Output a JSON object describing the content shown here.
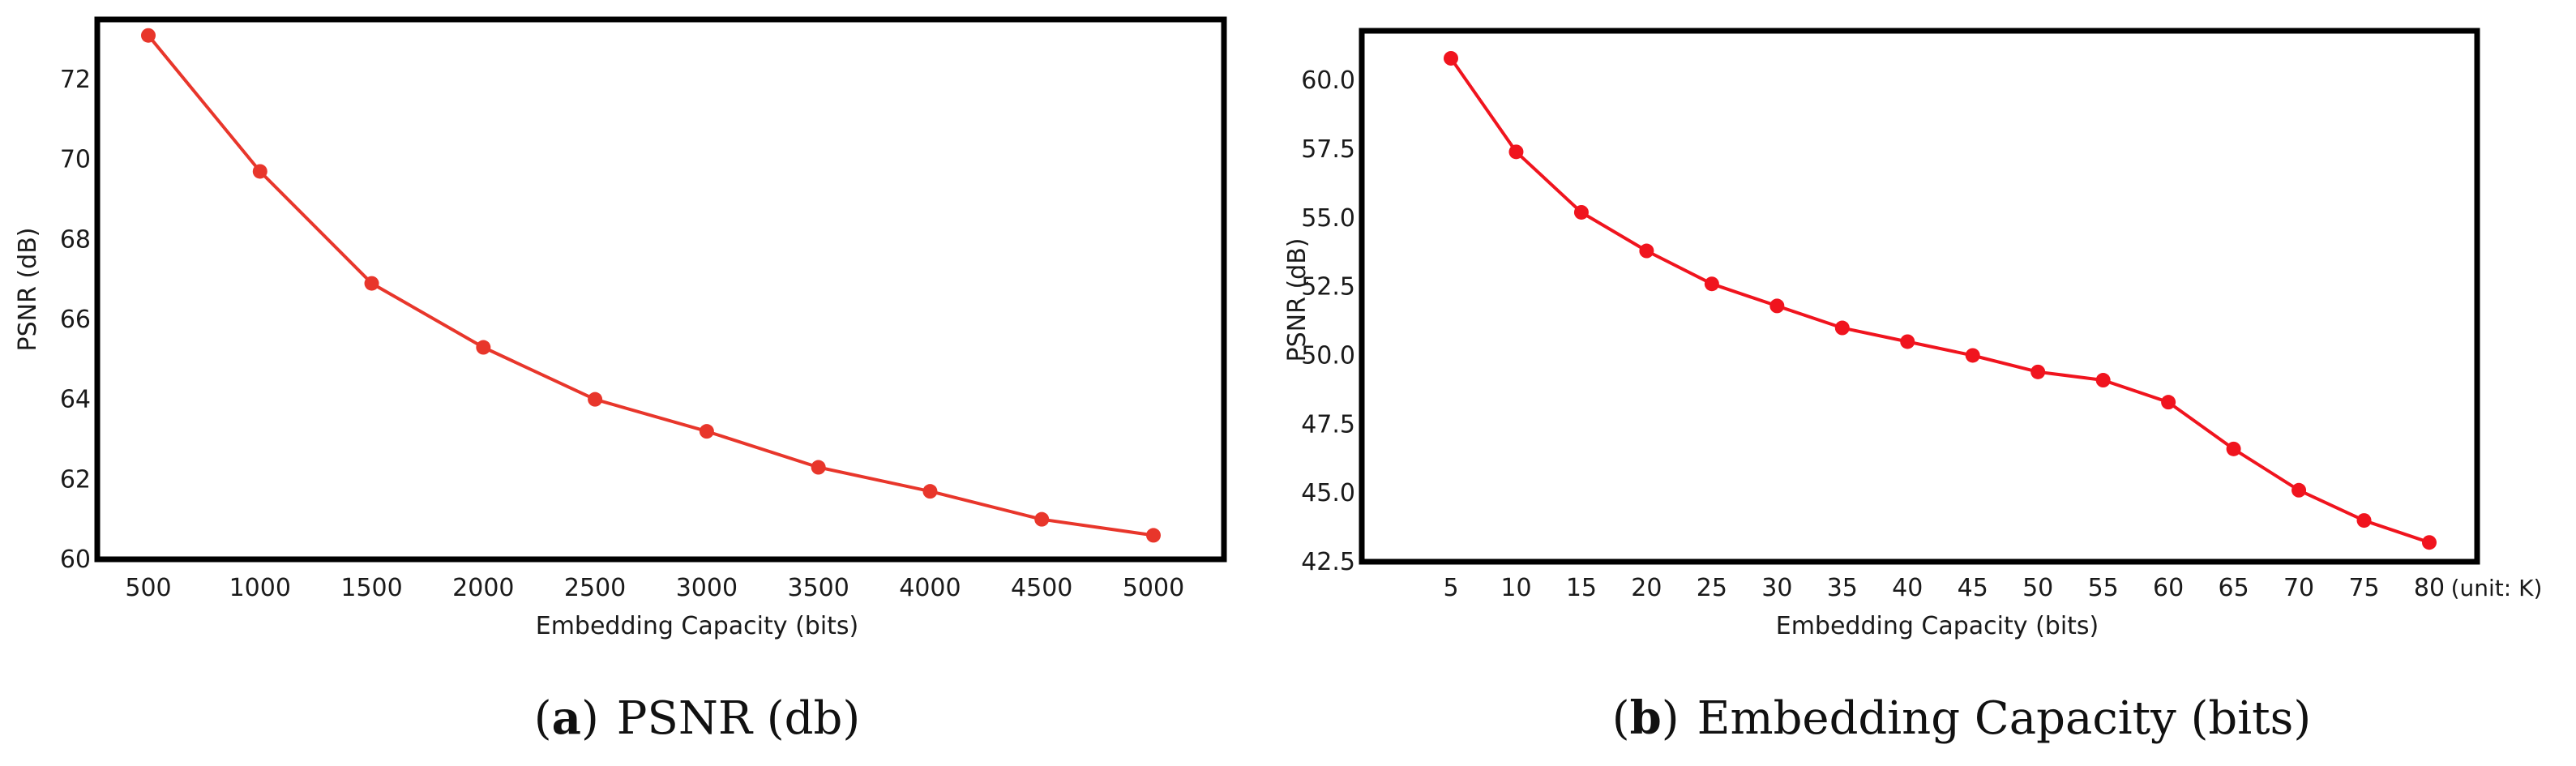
{
  "chart_data": [
    {
      "type": "line",
      "id": "a",
      "title": "",
      "xlabel": "Embedding Capacity (bits)",
      "ylabel": "PSNR (dB)",
      "categories": [
        "500",
        "1000",
        "1500",
        "2000",
        "2500",
        "3000",
        "3500",
        "4000",
        "4500",
        "5000"
      ],
      "x": [
        500,
        1000,
        1500,
        2000,
        2500,
        3000,
        3500,
        4000,
        4500,
        5000
      ],
      "series": [
        {
          "name": "PSNR",
          "values": [
            73.1,
            69.7,
            66.9,
            65.3,
            64.0,
            63.2,
            62.3,
            61.7,
            61.0,
            60.6
          ]
        }
      ],
      "yticks": [
        60,
        62,
        64,
        66,
        68,
        70,
        72
      ],
      "ylim": [
        60,
        73.5
      ],
      "grid": false,
      "color": "#e8362b",
      "caption_letter": "a",
      "caption_text": "PSNR (db)",
      "caption_open": "(",
      "caption_close": ")"
    },
    {
      "type": "line",
      "id": "b",
      "title": "",
      "xlabel": "Embedding Capacity (bits)",
      "ylabel": "PSNR (dB)",
      "unit_note": "(unit: K)",
      "categories": [
        "5",
        "10",
        "15",
        "20",
        "25",
        "30",
        "35",
        "40",
        "45",
        "50",
        "55",
        "60",
        "65",
        "70",
        "75",
        "80"
      ],
      "x": [
        5,
        10,
        15,
        20,
        25,
        30,
        35,
        40,
        45,
        50,
        55,
        60,
        65,
        70,
        75,
        80
      ],
      "series": [
        {
          "name": "PSNR",
          "values": [
            60.8,
            57.4,
            55.2,
            53.8,
            52.6,
            51.8,
            51.0,
            50.5,
            50.0,
            49.4,
            49.1,
            48.3,
            46.6,
            45.1,
            44.0,
            43.2
          ]
        }
      ],
      "yticks": [
        "42.5",
        "45.0",
        "47.5",
        "50.0",
        "52.5",
        "55.0",
        "57.5",
        "60.0"
      ],
      "ylim": [
        42.5,
        61.8
      ],
      "grid": false,
      "color": "#f0141e",
      "caption_letter": "b",
      "caption_text": "Embedding Capacity (bits)",
      "caption_open": "(",
      "caption_close": ")"
    }
  ]
}
